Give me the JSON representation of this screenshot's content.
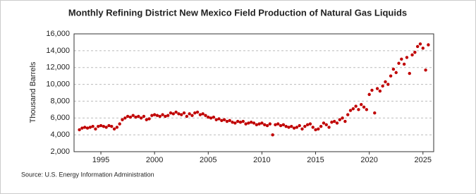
{
  "chart_data": {
    "type": "scatter",
    "title": "Monthly Refining District New Mexico Field Production of Natural Gas Liquids",
    "y_label": "Thousand Barrels",
    "source": "Source: U.S. Energy Information Administration",
    "series": [
      {
        "name": "Field Production",
        "color": "#c00000",
        "x": [
          1993,
          1993.25,
          1993.5,
          1993.75,
          1994,
          1994.25,
          1994.5,
          1994.75,
          1995,
          1995.25,
          1995.5,
          1995.75,
          1996,
          1996.25,
          1996.5,
          1996.75,
          1997,
          1997.25,
          1997.5,
          1997.75,
          1998,
          1998.25,
          1998.5,
          1998.75,
          1999,
          1999.25,
          1999.5,
          1999.75,
          2000,
          2000.25,
          2000.5,
          2000.75,
          2001,
          2001.25,
          2001.5,
          2001.75,
          2002,
          2002.25,
          2002.5,
          2002.75,
          2003,
          2003.25,
          2003.5,
          2003.75,
          2004,
          2004.25,
          2004.5,
          2004.75,
          2005,
          2005.25,
          2005.5,
          2005.75,
          2006,
          2006.25,
          2006.5,
          2006.75,
          2007,
          2007.25,
          2007.5,
          2007.75,
          2008,
          2008.25,
          2008.5,
          2008.75,
          2009,
          2009.25,
          2009.5,
          2009.75,
          2010,
          2010.25,
          2010.5,
          2010.75,
          2011,
          2011.25,
          2011.5,
          2011.75,
          2012,
          2012.25,
          2012.5,
          2012.75,
          2013,
          2013.25,
          2013.5,
          2013.75,
          2014,
          2014.25,
          2014.5,
          2014.75,
          2015,
          2015.25,
          2015.5,
          2015.75,
          2016,
          2016.25,
          2016.5,
          2016.75,
          2017,
          2017.25,
          2017.5,
          2017.75,
          2018,
          2018.25,
          2018.5,
          2018.75,
          2019,
          2019.25,
          2019.5,
          2019.75,
          2020,
          2020.25,
          2020.5,
          2020.75,
          2021,
          2021.25,
          2021.5,
          2021.75,
          2022,
          2022.25,
          2022.5,
          2022.75,
          2023,
          2023.25,
          2023.5,
          2023.75,
          2024,
          2024.25,
          2024.5,
          2024.75,
          2025,
          2025.25,
          2025.5
        ],
        "values": [
          4600,
          4800,
          4900,
          4800,
          4900,
          5000,
          4700,
          5000,
          5100,
          5000,
          4900,
          5100,
          5000,
          4700,
          4900,
          5300,
          5800,
          6000,
          6200,
          6100,
          6300,
          6100,
          6200,
          6000,
          6200,
          5800,
          5900,
          6300,
          6400,
          6300,
          6200,
          6400,
          6200,
          6300,
          6600,
          6500,
          6700,
          6500,
          6400,
          6600,
          6200,
          6500,
          6300,
          6600,
          6700,
          6400,
          6500,
          6300,
          6100,
          6000,
          6100,
          5800,
          5900,
          5700,
          5800,
          5600,
          5700,
          5500,
          5400,
          5600,
          5500,
          5600,
          5300,
          5400,
          5500,
          5400,
          5200,
          5300,
          5400,
          5200,
          5100,
          5300,
          4000,
          5200,
          5300,
          5100,
          5200,
          5000,
          4900,
          5000,
          4800,
          4900,
          5100,
          4700,
          5000,
          5200,
          5300,
          4900,
          4600,
          4700,
          5000,
          5400,
          5200,
          4900,
          5500,
          5600,
          5400,
          5800,
          6000,
          5600,
          6400,
          6900,
          7100,
          7400,
          7000,
          7600,
          7300,
          7000,
          8800,
          9300,
          6600,
          9500,
          9200,
          9800,
          10300,
          10000,
          11000,
          11800,
          11400,
          12500,
          13000,
          12400,
          13200,
          11300,
          13500,
          13800,
          14500,
          14800,
          14300,
          11700,
          14700
        ]
      }
    ],
    "xlim": [
      1992.5,
      2026
    ],
    "xticks": [
      1995,
      2000,
      2005,
      2010,
      2015,
      2020,
      2025
    ],
    "ylim": [
      2000,
      16000
    ],
    "yticks": [
      {
        "value": 2000,
        "label": "2,000"
      },
      {
        "value": 4000,
        "label": "4,000"
      },
      {
        "value": 6000,
        "label": "6,000"
      },
      {
        "value": 8000,
        "label": "8,000"
      },
      {
        "value": 10000,
        "label": "10,000"
      },
      {
        "value": 12000,
        "label": "12,000"
      },
      {
        "value": 14000,
        "label": "14,000"
      },
      {
        "value": 16000,
        "label": "16,000"
      }
    ],
    "grid": true
  }
}
